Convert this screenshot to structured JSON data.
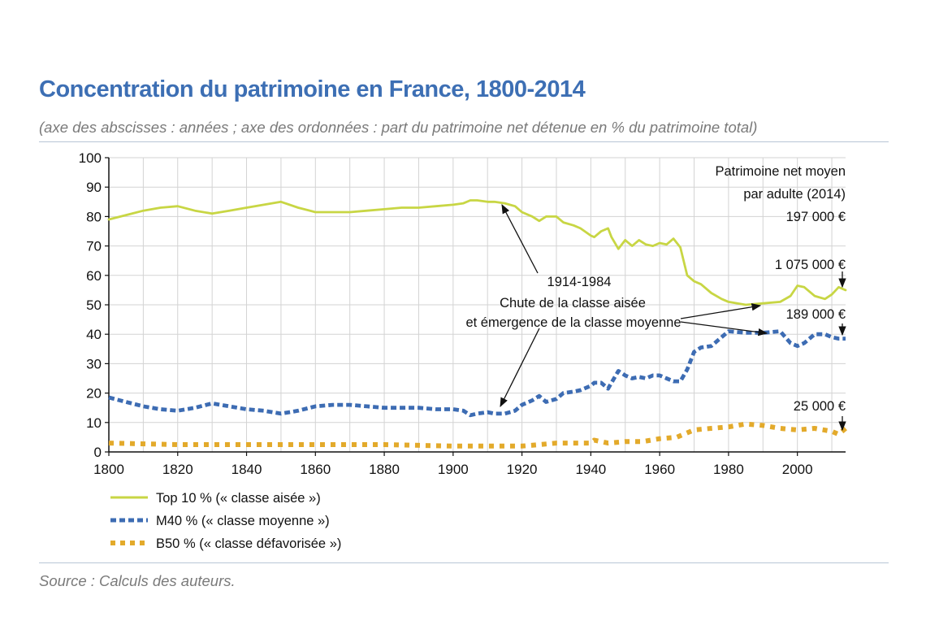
{
  "title": "Concentration du patrimoine en France, 1800-2014",
  "subtitle": "(axe des abscisses : années ; axe des ordonnées : part du patrimoine net détenue en % du patrimoine total)",
  "source": "Source : Calculs des auteurs.",
  "chart_data": {
    "type": "line",
    "xlim": [
      1800,
      2014
    ],
    "ylim": [
      0,
      100
    ],
    "grid": true,
    "legend_position": "bottom-left",
    "x_ticks": [
      "1800",
      "1820",
      "1840",
      "1860",
      "1880",
      "1900",
      "1920",
      "1940",
      "1960",
      "1980",
      "2000"
    ],
    "y_ticks": [
      "0",
      "10",
      "20",
      "30",
      "40",
      "50",
      "60",
      "70",
      "80",
      "90",
      "100"
    ],
    "series": [
      {
        "name": "Top 10 % (« classe aisée »)",
        "color": "#c8d644",
        "style": "solid",
        "x": [
          1800,
          1805,
          1810,
          1815,
          1820,
          1825,
          1830,
          1835,
          1840,
          1845,
          1850,
          1855,
          1860,
          1865,
          1870,
          1875,
          1880,
          1885,
          1890,
          1895,
          1900,
          1903,
          1905,
          1907,
          1910,
          1912,
          1915,
          1918,
          1920,
          1923,
          1925,
          1927,
          1930,
          1932,
          1935,
          1937,
          1940,
          1941,
          1943,
          1945,
          1946,
          1948,
          1950,
          1952,
          1954,
          1956,
          1958,
          1960,
          1962,
          1964,
          1966,
          1968,
          1970,
          1972,
          1975,
          1978,
          1980,
          1985,
          1990,
          1995,
          1998,
          2000,
          2002,
          2005,
          2008,
          2010,
          2012,
          2014
        ],
        "values": [
          79,
          80.5,
          82,
          83,
          83.5,
          82,
          81,
          82,
          83,
          84,
          85,
          83,
          81.5,
          81.5,
          81.5,
          82,
          82.5,
          83,
          83,
          83.5,
          84,
          84.5,
          85.5,
          85.5,
          85,
          85,
          84.5,
          83.5,
          81.5,
          80,
          78.5,
          80,
          80,
          78,
          77,
          76,
          73.5,
          73,
          75,
          76,
          73,
          69,
          72,
          70,
          72,
          70.5,
          70,
          71,
          70.5,
          72.5,
          69.5,
          60,
          58,
          57,
          54,
          52,
          51,
          50,
          50.5,
          51,
          53,
          56.5,
          56,
          53,
          52,
          53.5,
          56,
          55
        ]
      },
      {
        "name": "M40 % (« classe moyenne »)",
        "color": "#3d6cb3",
        "style": "dashed",
        "x": [
          1800,
          1805,
          1810,
          1815,
          1820,
          1825,
          1830,
          1835,
          1840,
          1845,
          1850,
          1855,
          1860,
          1865,
          1870,
          1875,
          1880,
          1885,
          1890,
          1895,
          1900,
          1903,
          1905,
          1907,
          1910,
          1912,
          1915,
          1918,
          1920,
          1923,
          1925,
          1927,
          1930,
          1932,
          1935,
          1937,
          1940,
          1941,
          1943,
          1945,
          1946,
          1948,
          1950,
          1952,
          1954,
          1956,
          1958,
          1960,
          1962,
          1964,
          1966,
          1968,
          1970,
          1972,
          1975,
          1978,
          1980,
          1985,
          1990,
          1995,
          1998,
          2000,
          2002,
          2005,
          2008,
          2010,
          2012,
          2014
        ],
        "values": [
          18.5,
          17,
          15.5,
          14.5,
          14,
          15,
          16.5,
          15.5,
          14.5,
          14,
          13,
          14,
          15.5,
          16,
          16,
          15.5,
          15,
          15,
          15,
          14.5,
          14.5,
          14,
          12.5,
          13,
          13.5,
          13,
          13,
          14,
          16,
          17.5,
          19,
          17,
          18,
          20,
          20.5,
          21,
          22.5,
          23.5,
          23.5,
          21.5,
          23.5,
          27.5,
          26,
          25,
          25.5,
          25,
          26,
          26,
          25,
          24,
          24,
          28,
          34,
          35.5,
          36,
          39,
          41,
          40.5,
          40.5,
          41,
          37,
          36,
          37,
          40,
          40,
          39,
          38.5,
          38.5
        ]
      },
      {
        "name": "B50 % (« classe défavorisée »)",
        "color": "#e3aa2b",
        "style": "dotted",
        "x": [
          1800,
          1820,
          1840,
          1860,
          1880,
          1900,
          1910,
          1920,
          1925,
          1930,
          1935,
          1940,
          1941,
          1943,
          1945,
          1950,
          1955,
          1960,
          1965,
          1968,
          1970,
          1975,
          1980,
          1985,
          1990,
          1995,
          2000,
          2005,
          2010,
          2012,
          2014
        ],
        "values": [
          3,
          2.5,
          2.5,
          2.5,
          2.5,
          2,
          2,
          2,
          2.5,
          3,
          3,
          3,
          4,
          3.5,
          3,
          3.5,
          3.5,
          4.5,
          5,
          6.5,
          7.5,
          8,
          8.5,
          9.5,
          9,
          8,
          7.5,
          8,
          7,
          6,
          8
        ]
      }
    ],
    "annotations": {
      "period": "1914-1984",
      "line1": "Chute de la classe aisée",
      "line2": "et émergence de la classe moyenne",
      "patrimoine_1": "Patrimoine net moyen",
      "patrimoine_2": "par adulte (2014)",
      "patrimoine_3": "197 000 €",
      "top10_value": "1 075 000 €",
      "m40_value": "189 000 €",
      "b50_value": "25 000 €"
    }
  }
}
